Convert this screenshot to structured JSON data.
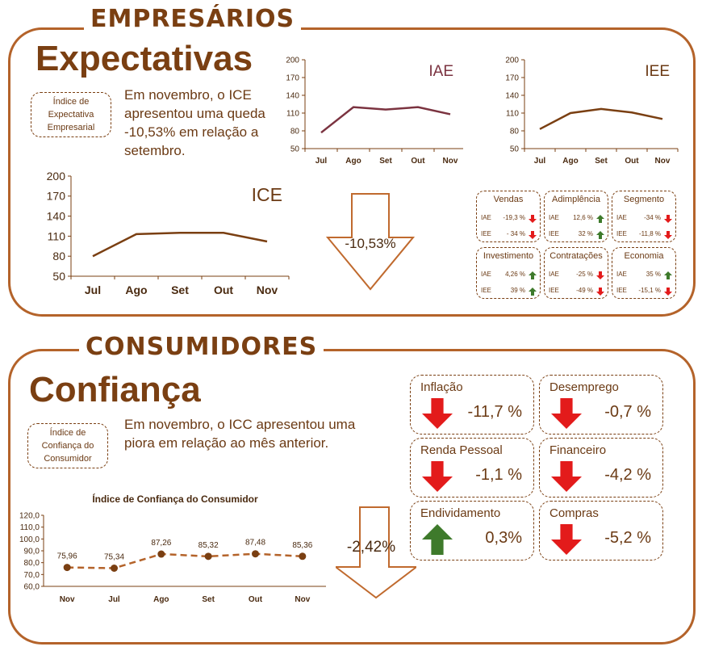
{
  "colors": {
    "brand": "#b4632a",
    "text": "#6b3a14",
    "line": "#7a3f12",
    "up": "#3e7a2b",
    "down": "#e31b1b",
    "iae": "#7b3340"
  },
  "empresarios": {
    "section_title": "EMPRESÁRIOS",
    "title": "Expectativas",
    "index_label": "Índice de Expectativa Empresarial",
    "text": "Em novembro, o ICE apresentou uma queda -10,53%  em relação a setembro.",
    "change": "-10,53%",
    "change_direction": "down",
    "charts": [
      {
        "title": "IAE",
        "months": [
          "Jul",
          "Ago",
          "Set",
          "Out",
          "Nov"
        ],
        "values": [
          77,
          120,
          116,
          120,
          108
        ],
        "yticks": [
          "200",
          "170",
          "140",
          "110",
          "80",
          "50"
        ],
        "color": "#7b3340"
      },
      {
        "title": "IEE",
        "months": [
          "Jul",
          "Ago",
          "Set",
          "Out",
          "Nov"
        ],
        "values": [
          83,
          110,
          117,
          111,
          100
        ],
        "yticks": [
          "200",
          "170",
          "140",
          "110",
          "80",
          "50"
        ],
        "color": "#7a3f12"
      },
      {
        "title": "ICE",
        "months": [
          "Jul",
          "Ago",
          "Set",
          "Out",
          "Nov"
        ],
        "values": [
          80,
          113,
          115,
          115,
          102
        ],
        "yticks": [
          "200",
          "170",
          "140",
          "110",
          "80",
          "50"
        ],
        "color": "#7a3f12"
      }
    ],
    "components": [
      {
        "name": "Vendas",
        "rows": [
          {
            "label": "IAE",
            "value": "-19,3 %",
            "dir": "down"
          },
          {
            "label": "IEE",
            "value": "- 34 %",
            "dir": "down"
          }
        ]
      },
      {
        "name": "Adimplência",
        "rows": [
          {
            "label": "IAE",
            "value": "12,6 %",
            "dir": "up"
          },
          {
            "label": "IEE",
            "value": "32 %",
            "dir": "up"
          }
        ]
      },
      {
        "name": "Segmento",
        "rows": [
          {
            "label": "IAE",
            "value": "-34 %",
            "dir": "down"
          },
          {
            "label": "IEE",
            "value": "-11,8 %",
            "dir": "down"
          }
        ]
      },
      {
        "name": "Investimento",
        "rows": [
          {
            "label": "IAE",
            "value": "4,26 %",
            "dir": "up"
          },
          {
            "label": "IEE",
            "value": "39 %",
            "dir": "up"
          }
        ]
      },
      {
        "name": "Contratações",
        "rows": [
          {
            "label": "IAE",
            "value": "-25 %",
            "dir": "down"
          },
          {
            "label": "IEE",
            "value": "-49 %",
            "dir": "down"
          }
        ]
      },
      {
        "name": "Economia",
        "rows": [
          {
            "label": "IAE",
            "value": "35 %",
            "dir": "up"
          },
          {
            "label": "IEE",
            "value": "-15,1 %",
            "dir": "down"
          }
        ]
      }
    ]
  },
  "consumidores": {
    "section_title": "CONSUMIDORES",
    "title": "Confiança",
    "index_label": "Índice de Confiança do Consumidor",
    "text": "Em novembro, o ICC apresentou uma piora em relação ao mês anterior.",
    "change": "-2,42%",
    "change_direction": "down",
    "components": [
      {
        "name": "Inflação",
        "value": "-11,7 %",
        "dir": "down"
      },
      {
        "name": "Desemprego",
        "value": "-0,7 %",
        "dir": "down"
      },
      {
        "name": "Renda Pessoal",
        "value": "-1,1 %",
        "dir": "down"
      },
      {
        "name": "Financeiro",
        "value": "-4,2 %",
        "dir": "down"
      },
      {
        "name": "Endividamento",
        "value": "0,3%",
        "dir": "up"
      },
      {
        "name": "Compras",
        "value": "-5,2 %",
        "dir": "down"
      }
    ]
  },
  "chart_data": [
    {
      "type": "line",
      "title": "IAE",
      "x": [
        "Jul",
        "Ago",
        "Set",
        "Out",
        "Nov"
      ],
      "values": [
        77,
        120,
        116,
        120,
        108
      ],
      "ylim": [
        50,
        200
      ],
      "yticks": [
        50,
        80,
        110,
        140,
        170,
        200
      ]
    },
    {
      "type": "line",
      "title": "IEE",
      "x": [
        "Jul",
        "Ago",
        "Set",
        "Out",
        "Nov"
      ],
      "values": [
        83,
        110,
        117,
        111,
        100
      ],
      "ylim": [
        50,
        200
      ],
      "yticks": [
        50,
        80,
        110,
        140,
        170,
        200
      ]
    },
    {
      "type": "line",
      "title": "ICE",
      "x": [
        "Jul",
        "Ago",
        "Set",
        "Out",
        "Nov"
      ],
      "values": [
        80,
        113,
        115,
        115,
        102
      ],
      "ylim": [
        50,
        200
      ],
      "yticks": [
        50,
        80,
        110,
        140,
        170,
        200
      ]
    },
    {
      "type": "line",
      "title": "Índice de Confiança do Consumidor",
      "x": [
        "Nov",
        "Jul",
        "Ago",
        "Set",
        "Out",
        "Nov"
      ],
      "values": [
        75.96,
        75.34,
        87.26,
        85.32,
        87.48,
        85.36
      ],
      "data_labels": [
        "75,96",
        "75,34",
        "87,26",
        "85,32",
        "87,48",
        "85,36"
      ],
      "ylim": [
        60,
        120
      ],
      "yticks": [
        "60,0",
        "70,0",
        "80,0",
        "90,0",
        "100,0",
        "110,0",
        "120,0"
      ]
    }
  ]
}
